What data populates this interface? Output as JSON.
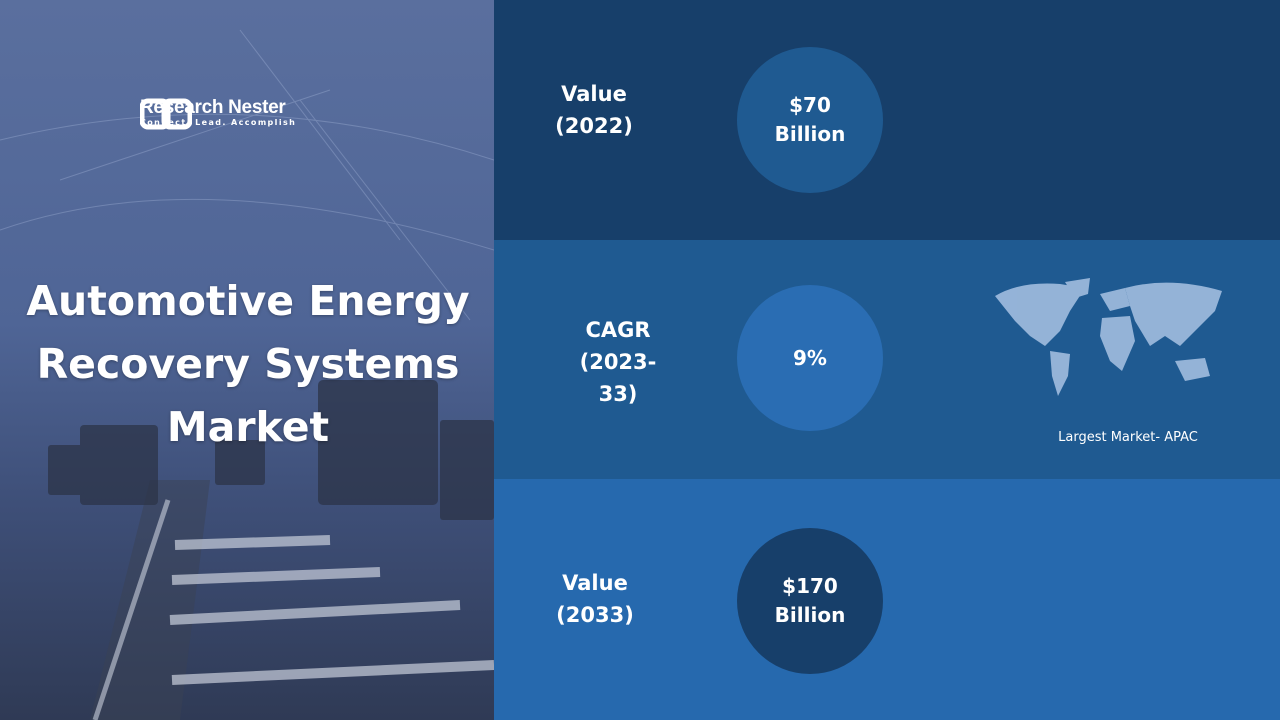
{
  "logo": {
    "name": "Research Nester",
    "tagline": "Connect. Lead. Accomplish"
  },
  "title": "Automotive Energy Recovery Systems Market",
  "rows": [
    {
      "label": "Value (2022)",
      "value": "$70 Billion"
    },
    {
      "label": "CAGR (2023-33)",
      "value": "9%"
    },
    {
      "label": "Value (2033)",
      "value": "$170 Billion"
    }
  ],
  "map": {
    "caption": "Largest Market- APAC"
  }
}
